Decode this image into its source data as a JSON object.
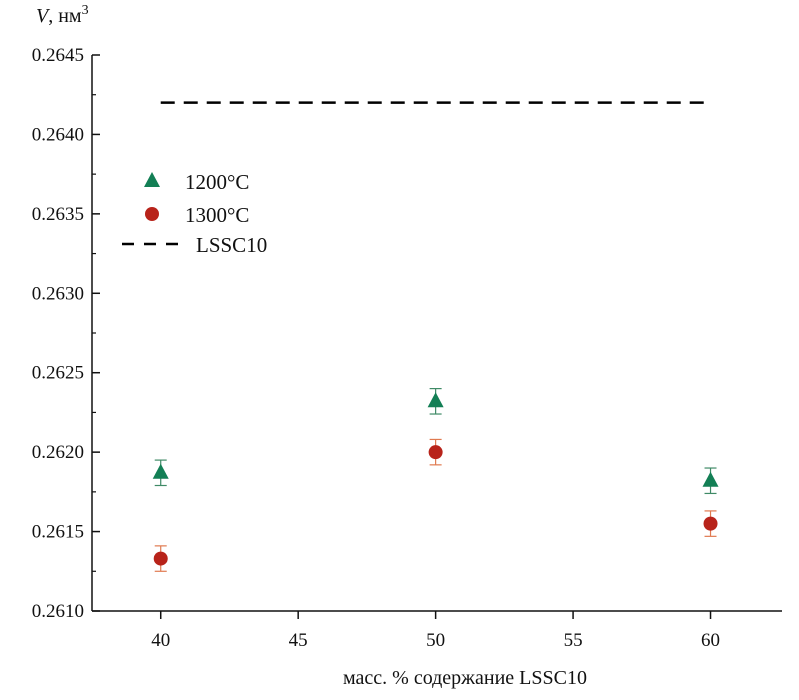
{
  "chart_data": {
    "type": "scatter",
    "title": "",
    "ylabel_var": "V",
    "ylabel_unit": ", нм",
    "ylabel_sup": "3",
    "xlabel": "масс. % содержание LSSC10",
    "xlim": [
      37.5,
      62.6
    ],
    "ylim": [
      0.261,
      0.2645
    ],
    "xticks": [
      40,
      45,
      50,
      55,
      60
    ],
    "xtick_labels": [
      "40",
      "45",
      "50",
      "55",
      "60"
    ],
    "yticks": [
      0.261,
      0.2615,
      0.262,
      0.2625,
      0.263,
      0.2635,
      0.264,
      0.2645
    ],
    "ytick_labels": [
      "0.2610",
      "0.2615",
      "0.2620",
      "0.2625",
      "0.2630",
      "0.2635",
      "0.2640",
      "0.2645"
    ],
    "grid": false,
    "legend_position": "upper-left",
    "series": [
      {
        "name": "1200°C",
        "marker": "triangle",
        "color": "#137f55",
        "error_color": "#3f8a66",
        "x": [
          40,
          50,
          60
        ],
        "y": [
          0.26187,
          0.26232,
          0.26182
        ],
        "yerr": [
          8e-05,
          8e-05,
          8e-05
        ]
      },
      {
        "name": "1300°C",
        "marker": "circle",
        "color": "#b8231a",
        "error_color": "#e07a50",
        "x": [
          40,
          50,
          60
        ],
        "y": [
          0.26133,
          0.262,
          0.26155
        ],
        "yerr": [
          8e-05,
          8e-05,
          8e-05
        ]
      }
    ],
    "reference_lines": [
      {
        "name": "LSSC10",
        "style": "dashed",
        "color": "#000000",
        "y": 0.2642,
        "x_range": [
          40,
          60
        ]
      }
    ]
  }
}
